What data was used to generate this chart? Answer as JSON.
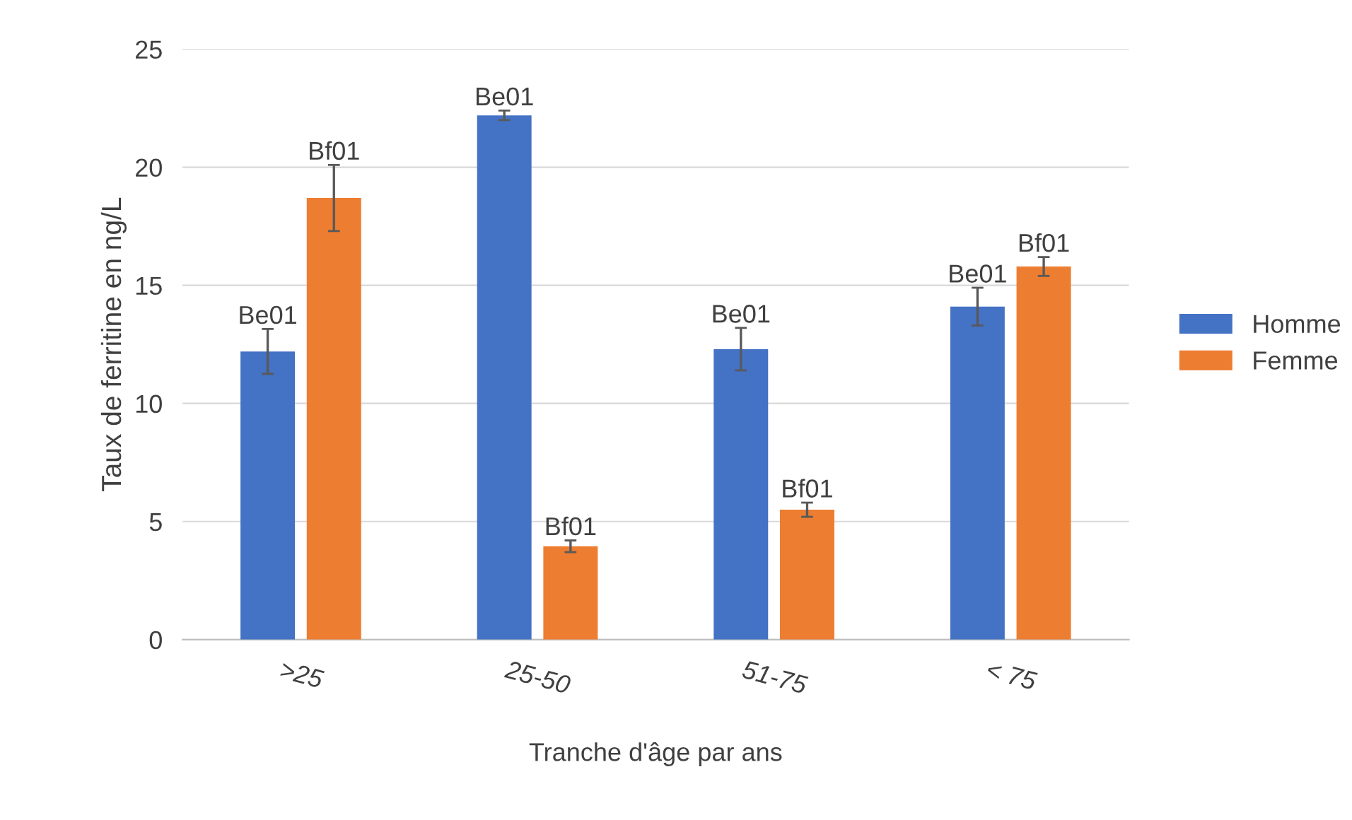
{
  "chart_data": {
    "type": "bar",
    "xlabel": "Tranche d'âge par ans",
    "ylabel": "Taux de ferritine en ng/L",
    "categories": [
      ">25",
      "25-50",
      "51-75",
      "< 75"
    ],
    "series": [
      {
        "name": "Homme",
        "color": "#4472c4",
        "values": [
          12.2,
          22.2,
          12.3,
          14.1
        ],
        "errors": [
          0.95,
          0.2,
          0.9,
          0.8
        ],
        "value_labels": [
          "Be01",
          "Be01",
          "Be01",
          "Be01"
        ]
      },
      {
        "name": "Femme",
        "color": "#ed7d31",
        "values": [
          18.7,
          3.95,
          5.5,
          15.8
        ],
        "errors": [
          1.4,
          0.25,
          0.3,
          0.4
        ],
        "value_labels": [
          "Bf01",
          "Bf01",
          "Bf01",
          "Bf01"
        ]
      }
    ],
    "ylim": [
      0,
      25
    ],
    "yticks": [
      0,
      5,
      10,
      15,
      20,
      25
    ],
    "grid": "y",
    "legend": "right"
  }
}
